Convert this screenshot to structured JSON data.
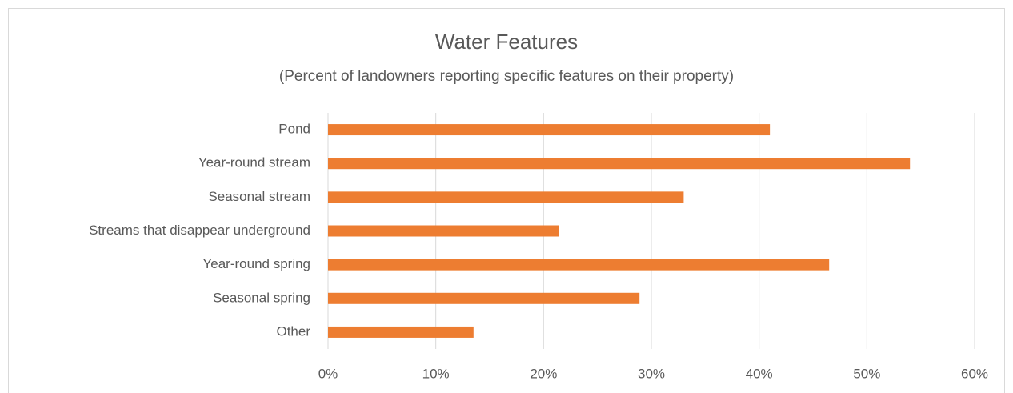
{
  "chart_data": {
    "type": "bar",
    "orientation": "horizontal",
    "title": "Water Features",
    "subtitle": "(Percent of landowners reporting specific features on their property)",
    "categories": [
      "Pond",
      "Year-round stream",
      "Seasonal stream",
      "Streams that disappear underground",
      "Year-round spring",
      "Seasonal spring",
      "Other"
    ],
    "values": [
      41,
      54,
      33,
      21.4,
      46.5,
      28.9,
      13.5
    ],
    "color": "#ed7d31",
    "xlim": [
      0,
      60
    ],
    "xticks": [
      {
        "value": 0,
        "label": "0%"
      },
      {
        "value": 10,
        "label": "10%"
      },
      {
        "value": 20,
        "label": "20%"
      },
      {
        "value": 30,
        "label": "30%"
      },
      {
        "value": 40,
        "label": "40%"
      },
      {
        "value": 50,
        "label": "50%"
      },
      {
        "value": 60,
        "label": "60%"
      }
    ],
    "grid": true
  }
}
